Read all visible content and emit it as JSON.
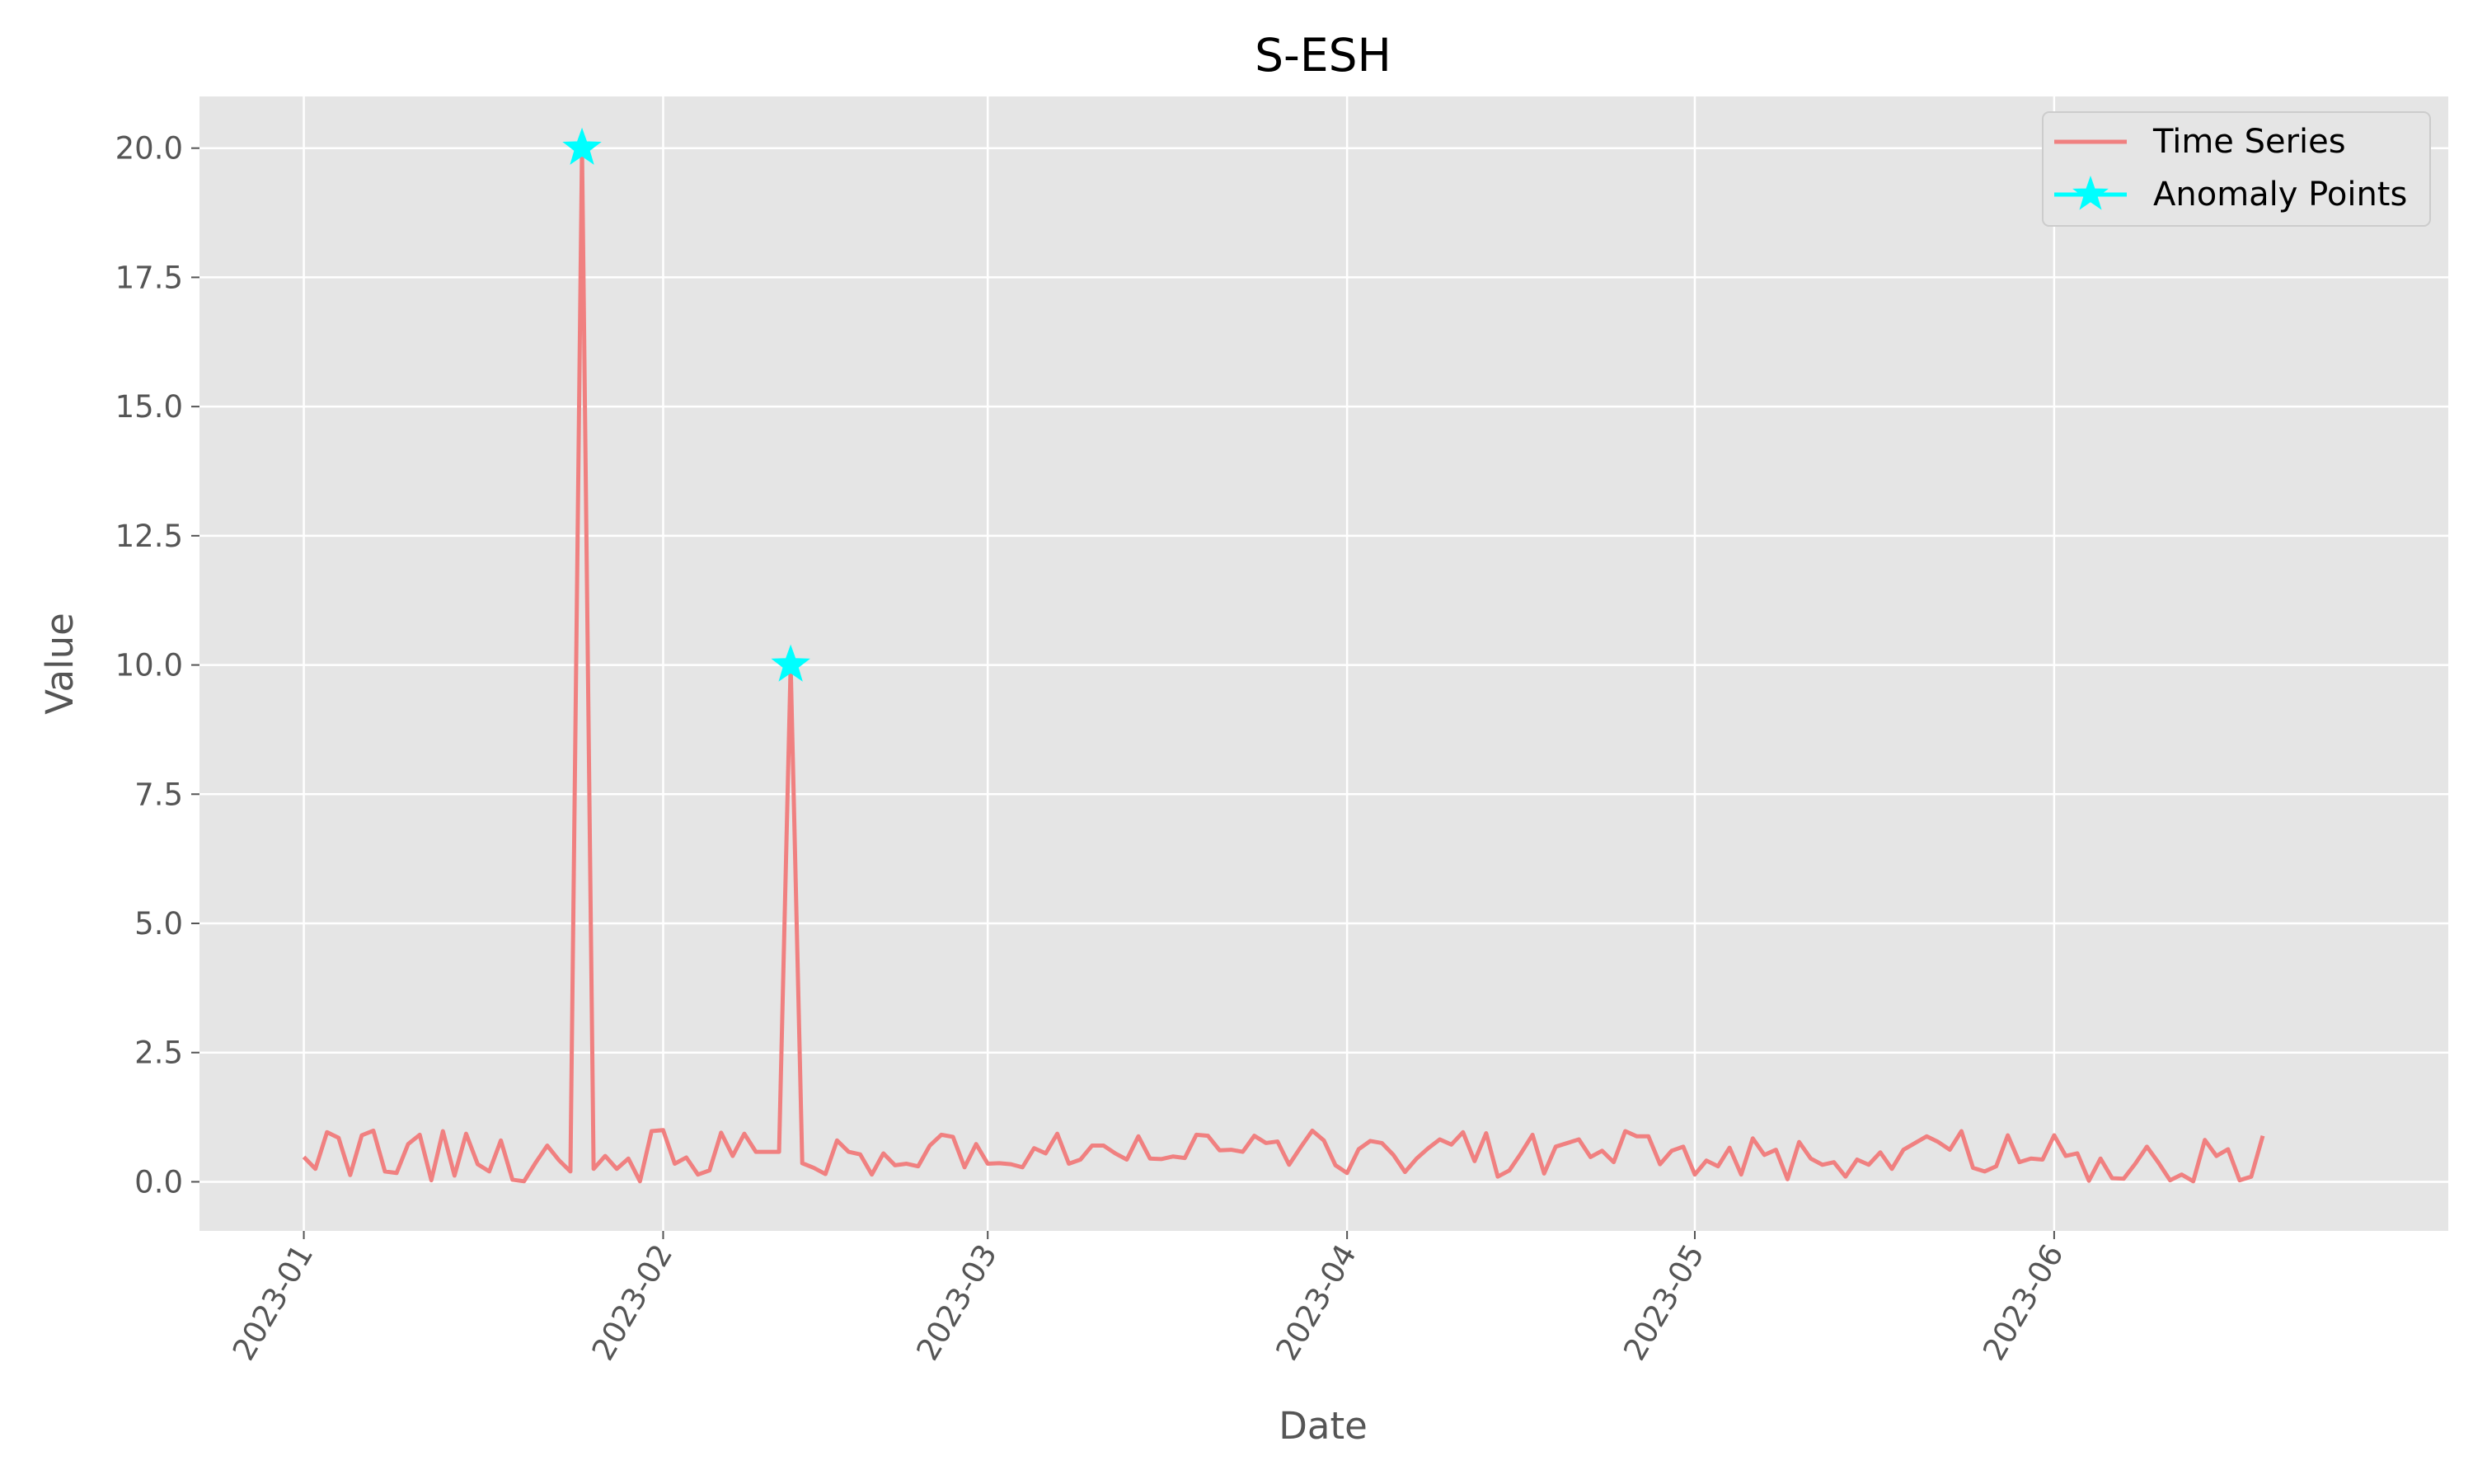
{
  "chart_data": {
    "type": "line",
    "title": "S-ESH",
    "xlabel": "Date",
    "ylabel": "Value",
    "x_axis_type": "date",
    "x_tick_labels": [
      "2023-01",
      "2023-02",
      "2023-03",
      "2023-04",
      "2023-05",
      "2023-06"
    ],
    "x_tick_dates": [
      "2023-01-01",
      "2023-02-01",
      "2023-03-01",
      "2023-04-01",
      "2023-05-01",
      "2023-06-01"
    ],
    "xlim": [
      "2022-12-23",
      "2023-07-05"
    ],
    "ylim": [
      -0.95,
      21.0
    ],
    "y_ticks": [
      0.0,
      2.5,
      5.0,
      7.5,
      10.0,
      12.5,
      15.0,
      17.5,
      20.0
    ],
    "y_tick_labels": [
      "0.0",
      "2.5",
      "5.0",
      "7.5",
      "10.0",
      "12.5",
      "15.0",
      "17.5",
      "20.0"
    ],
    "grid": true,
    "legend_position": "top-right",
    "background_color": "#e5e5e5",
    "x_start": "2023-01-01",
    "x_end": "2023-06-19",
    "series": [
      {
        "name": "Time Series",
        "style": "line",
        "color": "#f08080",
        "values": [
          0.48,
          0.25,
          0.96,
          0.85,
          0.13,
          0.9,
          0.99,
          0.2,
          0.17,
          0.73,
          0.91,
          0.03,
          0.98,
          0.12,
          0.93,
          0.34,
          0.2,
          0.8,
          0.04,
          0.01,
          0.37,
          0.7,
          0.42,
          0.2,
          20.0,
          0.25,
          0.5,
          0.25,
          0.45,
          0.01,
          0.98,
          1.0,
          0.35,
          0.47,
          0.14,
          0.22,
          0.95,
          0.5,
          0.93,
          0.58,
          0.58,
          0.58,
          10.0,
          0.36,
          0.27,
          0.15,
          0.8,
          0.58,
          0.53,
          0.14,
          0.55,
          0.32,
          0.35,
          0.3,
          0.7,
          0.91,
          0.87,
          0.28,
          0.73,
          0.35,
          0.36,
          0.34,
          0.28,
          0.65,
          0.55,
          0.93,
          0.35,
          0.43,
          0.7,
          0.7,
          0.55,
          0.43,
          0.88,
          0.45,
          0.44,
          0.49,
          0.46,
          0.91,
          0.89,
          0.61,
          0.62,
          0.58,
          0.89,
          0.75,
          0.78,
          0.33,
          0.67,
          0.99,
          0.8,
          0.32,
          0.17,
          0.63,
          0.79,
          0.75,
          0.52,
          0.19,
          0.45,
          0.65,
          0.82,
          0.72,
          0.96,
          0.4,
          0.94,
          0.1,
          0.22,
          0.55,
          0.91,
          0.16,
          0.68,
          0.75,
          0.82,
          0.48,
          0.6,
          0.38,
          0.98,
          0.88,
          0.88,
          0.34,
          0.6,
          0.68,
          0.14,
          0.41,
          0.3,
          0.66,
          0.14,
          0.84,
          0.52,
          0.62,
          0.05,
          0.77,
          0.45,
          0.33,
          0.38,
          0.1,
          0.43,
          0.33,
          0.57,
          0.25,
          0.62,
          0.75,
          0.88,
          0.77,
          0.62,
          0.98,
          0.27,
          0.2,
          0.3,
          0.9,
          0.38,
          0.45,
          0.43,
          0.9,
          0.5,
          0.55,
          0.02,
          0.45,
          0.07,
          0.06,
          0.35,
          0.68,
          0.37,
          0.03,
          0.14,
          0.01,
          0.81,
          0.5,
          0.63,
          0.03,
          0.1,
          0.89
        ]
      },
      {
        "name": "Anomaly Points",
        "style": "marker",
        "marker": "star",
        "color": "#00ffff",
        "points": [
          {
            "x": "2023-01-25",
            "y": 20.0
          },
          {
            "x": "2023-02-12",
            "y": 10.0
          }
        ]
      }
    ]
  }
}
